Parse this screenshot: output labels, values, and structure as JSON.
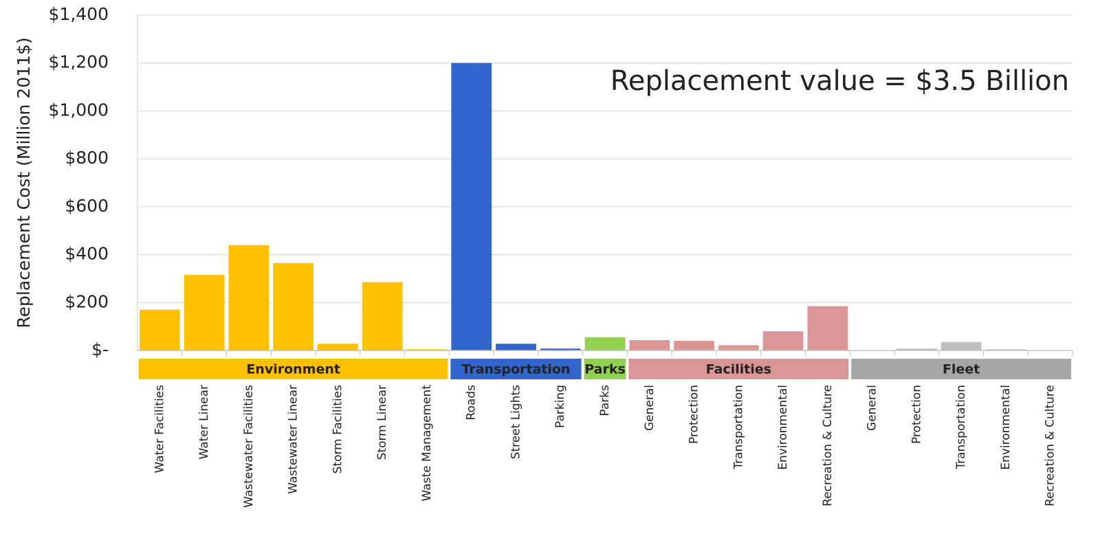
{
  "chart_data": {
    "type": "bar",
    "y_label": "Replacement Cost (Million 2011$)",
    "annotation": "Replacement value = $3.5 Billion",
    "ylim": [
      0,
      1400
    ],
    "yticks": [
      {
        "value": 0,
        "label": "$-"
      },
      {
        "value": 200,
        "label": "$200"
      },
      {
        "value": 400,
        "label": "$400"
      },
      {
        "value": 600,
        "label": "$600"
      },
      {
        "value": 800,
        "label": "$800"
      },
      {
        "value": 1000,
        "label": "$1,000"
      },
      {
        "value": 1200,
        "label": "$1,200"
      },
      {
        "value": 1400,
        "label": "$1,400"
      }
    ],
    "grid": true,
    "groups": [
      {
        "name": "Environment",
        "color": "#ffc000",
        "bar_color": "#ffc000",
        "categories": [
          "Water Facilities",
          "Water Linear",
          "Wastewater Facilities",
          "Wastewater Linear",
          "Storm Facilities",
          "Storm Linear",
          "Waste Management"
        ],
        "values": [
          170,
          315,
          440,
          365,
          28,
          285,
          5
        ]
      },
      {
        "name": "Transportation",
        "color": "#3366cc",
        "bar_color": "#3366cc",
        "categories": [
          "Roads",
          "Street Lights",
          "Parking"
        ],
        "values": [
          1200,
          28,
          8
        ]
      },
      {
        "name": "Parks",
        "color": "#92d050",
        "bar_color": "#92d050",
        "categories": [
          "Parks"
        ],
        "values": [
          55
        ]
      },
      {
        "name": "Facilities",
        "color": "#da9694",
        "bar_color": "#da9694",
        "categories": [
          "General",
          "Protection",
          "Transportation",
          "Environmental",
          "Recreation & Culture"
        ],
        "values": [
          43,
          40,
          22,
          80,
          185
        ]
      },
      {
        "name": "Fleet",
        "color": "#a6a6a6",
        "bar_color": "#bfbfbf",
        "categories": [
          "General",
          "Protection",
          "Transportation",
          "Environmental",
          "Recreation & Culture"
        ],
        "values": [
          1,
          8,
          35,
          5,
          1
        ]
      }
    ]
  }
}
